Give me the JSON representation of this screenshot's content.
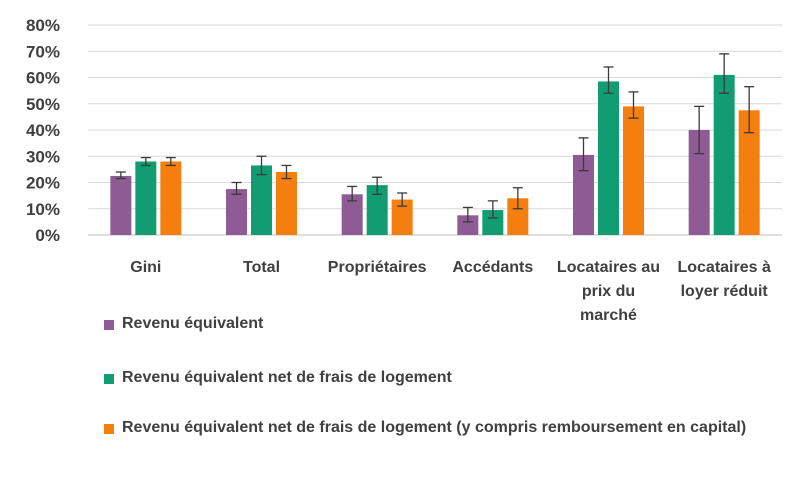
{
  "chart_data": {
    "type": "bar",
    "title": "",
    "xlabel": "",
    "ylabel": "",
    "ylim": [
      0,
      80
    ],
    "yticks": [
      "0%",
      "10%",
      "20%",
      "30%",
      "40%",
      "50%",
      "60%",
      "70%",
      "80%"
    ],
    "categories": [
      [
        "Gini"
      ],
      [
        "Total"
      ],
      [
        "Propriétaires"
      ],
      [
        "Accédants"
      ],
      [
        "Locataires au",
        "prix du",
        "marché"
      ],
      [
        "Locataires à",
        "loyer réduit"
      ]
    ],
    "series": [
      {
        "name": "Revenu équivalent",
        "color": "#8e5b94",
        "values": [
          22.5,
          17.5,
          15.5,
          7.5,
          30.5,
          40
        ],
        "error_low": [
          21.5,
          15.5,
          13,
          5,
          24.5,
          31
        ],
        "error_high": [
          24,
          20,
          18.5,
          10.5,
          37,
          49
        ]
      },
      {
        "name": "Revenu équivalent net de frais de logement",
        "color": "#129c71",
        "values": [
          28,
          26.5,
          19,
          9.5,
          58.5,
          61
        ],
        "error_low": [
          26.5,
          23,
          15.5,
          6.5,
          54,
          54
        ],
        "error_high": [
          29.5,
          30,
          22,
          13,
          64,
          69
        ]
      },
      {
        "name": "Revenu équivalent net de frais de logement (y compris remboursement en capital)",
        "color": "#f57f0e",
        "values": [
          28,
          24,
          13.5,
          14,
          49,
          47.5
        ],
        "error_low": [
          26.5,
          21.5,
          11,
          10,
          44.5,
          39
        ],
        "error_high": [
          29.5,
          26.5,
          16,
          18,
          54.5,
          56.5
        ]
      }
    ],
    "legend_position": "bottom",
    "grid": true
  }
}
